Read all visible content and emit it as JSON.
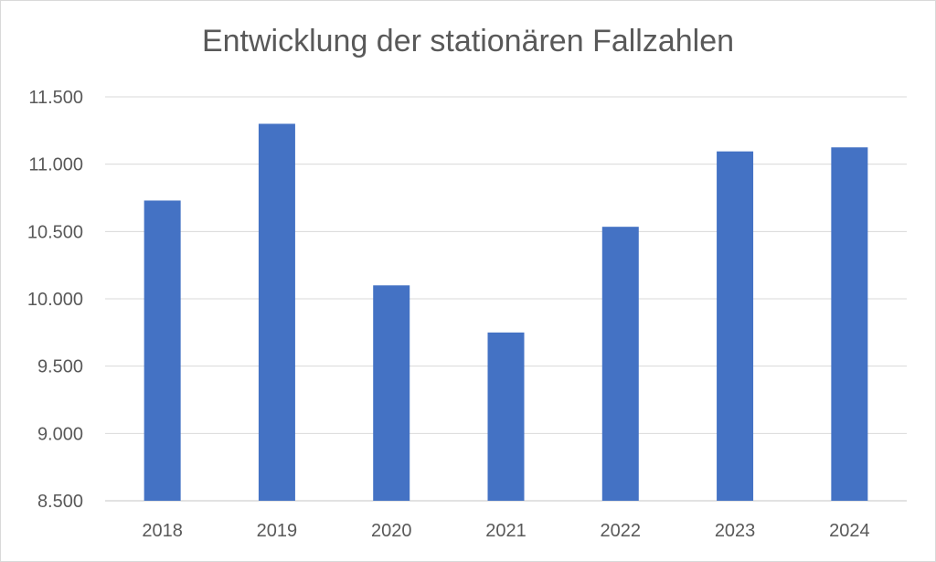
{
  "chart_data": {
    "type": "bar",
    "title": "Entwicklung der stationären Fallzahlen",
    "xlabel": "",
    "ylabel": "",
    "categories": [
      "2018",
      "2019",
      "2020",
      "2021",
      "2022",
      "2023",
      "2024"
    ],
    "values": [
      10730,
      11300,
      10100,
      9750,
      10535,
      11095,
      11125
    ],
    "ylim": [
      8500,
      11500
    ],
    "yticks": [
      8500,
      9000,
      9500,
      10000,
      10500,
      11000,
      11500
    ],
    "ytick_labels": [
      "8.500",
      "9.000",
      "9.500",
      "10.000",
      "10.500",
      "11.000",
      "11.500"
    ],
    "grid": true,
    "legend": "none",
    "colors": {
      "bar": "#4472c4",
      "grid": "#d9d9d9",
      "text": "#595959"
    }
  }
}
